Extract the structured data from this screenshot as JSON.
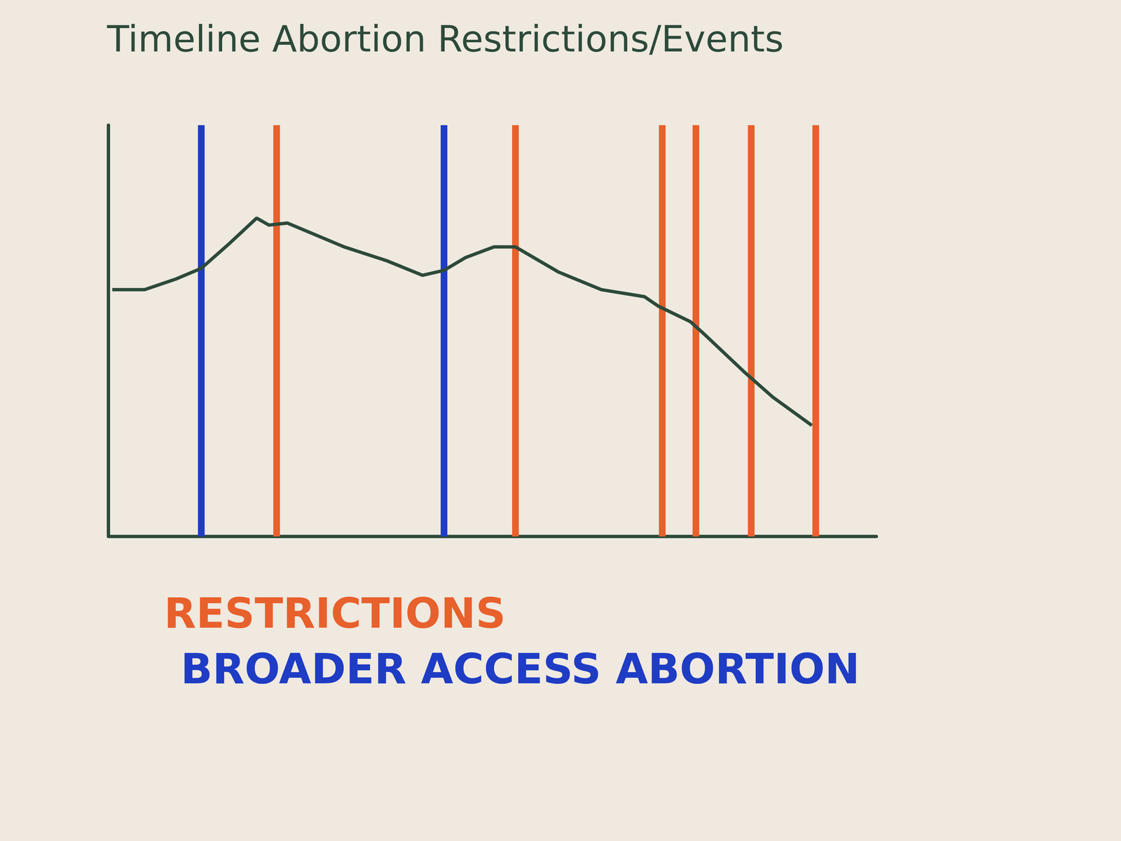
{
  "chart_data": {
    "type": "line",
    "title": "Timeline Abortion Restrictions/Events",
    "x": [
      0.5,
      4.7,
      8.8,
      12.1,
      15.8,
      19.3,
      20.9,
      23.3,
      30.7,
      36.3,
      40.9,
      43.7,
      46.5,
      50.2,
      53.0,
      58.6,
      64.2,
      69.8,
      71.6,
      75.8,
      77.7,
      82.8,
      86.5,
      91.6
    ],
    "values": [
      60.0,
      60.0,
      62.6,
      65.2,
      71.3,
      77.4,
      75.7,
      76.2,
      70.4,
      67.0,
      63.5,
      64.7,
      67.8,
      70.4,
      70.4,
      64.3,
      60.0,
      58.3,
      56.0,
      52.2,
      49.0,
      40.0,
      33.9,
      27.0
    ],
    "color": "#2d4a3a",
    "xlim": [
      0,
      100
    ],
    "ylim": [
      0,
      100
    ],
    "tick_labels": false,
    "grid": false,
    "events": [
      {
        "name": "RESTRICTIONS",
        "color": "#e8602c",
        "x": [
          21.9,
          53.0,
          72.1,
          76.5,
          83.7,
          92.1
        ]
      },
      {
        "name": "BROADER ACCESS ABORTION",
        "color": "#1f3cc4",
        "x": [
          12.1,
          43.7
        ]
      }
    ]
  }
}
